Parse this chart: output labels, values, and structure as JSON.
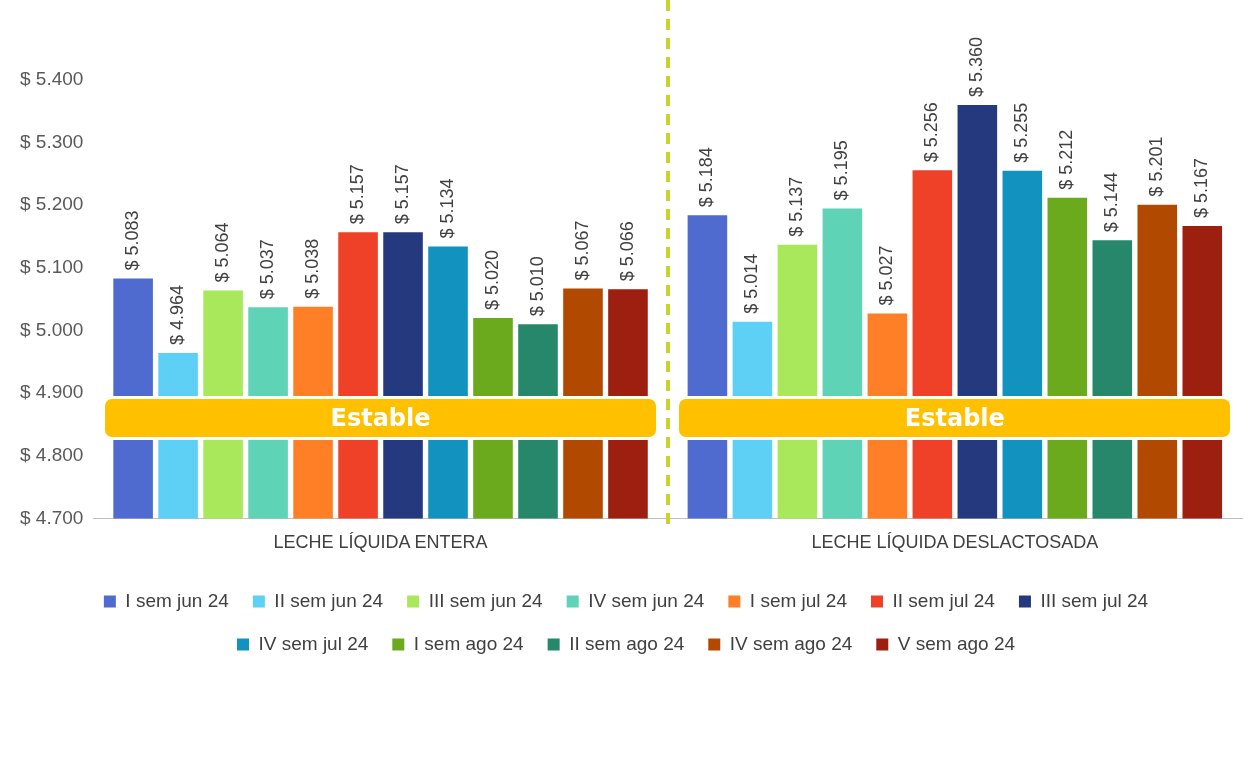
{
  "chart_data": {
    "type": "bar",
    "categories": [
      "LECHE LÍQUIDA ENTERA",
      "LECHE LÍQUIDA DESLACTOSADA"
    ],
    "series": [
      {
        "name": "I sem jun 24",
        "color": "#4f6bd0",
        "values": [
          5083,
          5184
        ],
        "value_labels": [
          "$ 5.083",
          "$ 5.184"
        ]
      },
      {
        "name": "II sem jun 24",
        "color": "#5ecff5",
        "values": [
          4964,
          5014
        ],
        "value_labels": [
          "$ 4.964",
          "$ 5.014"
        ]
      },
      {
        "name": "III sem jun 24",
        "color": "#a8e85a",
        "values": [
          5064,
          5137
        ],
        "value_labels": [
          "$ 5.064",
          "$ 5.137"
        ]
      },
      {
        "name": "IV sem jun 24",
        "color": "#5fd3b5",
        "values": [
          5037,
          5195
        ],
        "value_labels": [
          "$ 5.037",
          "$ 5.195"
        ]
      },
      {
        "name": "I sem jul 24",
        "color": "#ff7f27",
        "values": [
          5038,
          5027
        ],
        "value_labels": [
          "$ 5.038",
          "$ 5.027"
        ]
      },
      {
        "name": "II sem jul 24",
        "color": "#ee4128",
        "values": [
          5157,
          5256
        ],
        "value_labels": [
          "$ 5.157",
          "$ 5.256"
        ]
      },
      {
        "name": "III sem jul 24",
        "color": "#253a7e",
        "values": [
          5157,
          5360
        ],
        "value_labels": [
          "$ 5.157",
          "$ 5.360"
        ]
      },
      {
        "name": "IV sem jul 24",
        "color": "#1192bf",
        "values": [
          5134,
          5255
        ],
        "value_labels": [
          "$ 5.134",
          "$ 5.255"
        ]
      },
      {
        "name": "I sem ago 24",
        "color": "#6aaa1c",
        "values": [
          5020,
          5212
        ],
        "value_labels": [
          "$ 5.020",
          "$ 5.212"
        ]
      },
      {
        "name": "II sem ago 24",
        "color": "#26876a",
        "values": [
          5010,
          5144
        ],
        "value_labels": [
          "$ 5.010",
          "$ 5.144"
        ]
      },
      {
        "name": "IV sem ago 24",
        "color": "#b14a00",
        "values": [
          5067,
          5201
        ],
        "value_labels": [
          "$ 5.067",
          "$ 5.201"
        ]
      },
      {
        "name": "V sem ago 24",
        "color": "#9c1f10",
        "values": [
          5066,
          5167
        ],
        "value_labels": [
          "$ 5.066",
          "$ 5.167"
        ]
      }
    ],
    "ylim": [
      4700,
      5400
    ],
    "yticks": [
      {
        "value": 4700,
        "label": "$ 4.700"
      },
      {
        "value": 4800,
        "label": "$ 4.800"
      },
      {
        "value": 4900,
        "label": "$ 4.900"
      },
      {
        "value": 5000,
        "label": "$ 5.000"
      },
      {
        "value": 5100,
        "label": "$ 5.100"
      },
      {
        "value": 5200,
        "label": "$ 5.200"
      },
      {
        "value": 5300,
        "label": "$ 5.300"
      },
      {
        "value": 5400,
        "label": "$ 5.400"
      }
    ],
    "annotations": [
      "Estable",
      "Estable"
    ],
    "grid": false,
    "legend": "bottom"
  }
}
